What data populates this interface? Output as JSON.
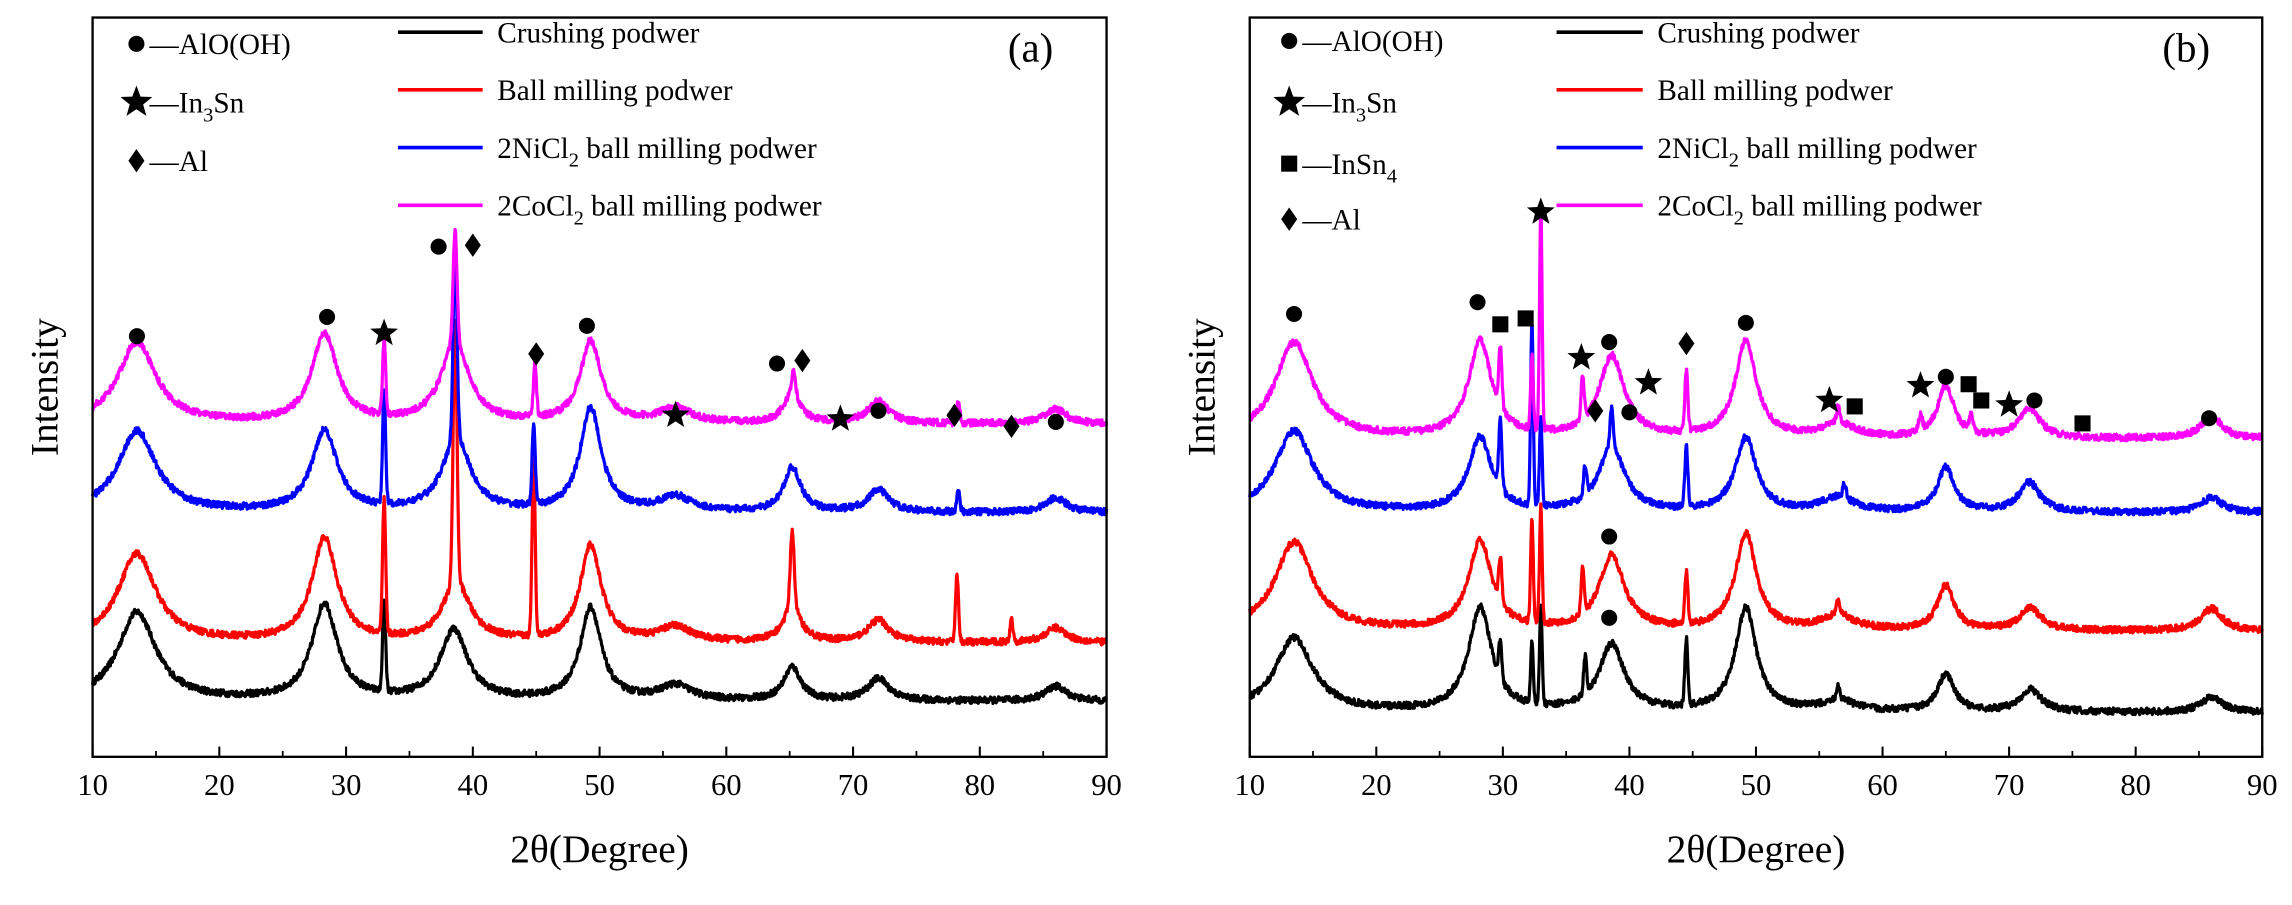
{
  "chart_data": [
    {
      "type": "line",
      "panel_label": "(a)",
      "xlabel": "2θ(Degree)",
      "ylabel": "Intensity",
      "xlim": [
        10,
        90
      ],
      "ylim": [
        0,
        100
      ],
      "xticks": [
        "10",
        "20",
        "30",
        "40",
        "50",
        "60",
        "70",
        "80",
        "90"
      ],
      "phase_legend": [
        {
          "symbol": "circle",
          "pre": "—AlO(OH)",
          "sub": "",
          "post": ""
        },
        {
          "symbol": "star",
          "pre": "—In",
          "sub": "3",
          "post": "Sn"
        },
        {
          "symbol": "diamond",
          "pre": "—Al",
          "sub": "",
          "post": ""
        }
      ],
      "series": [
        {
          "name": "Crushing podwer",
          "label_pre": "Crushing podwer",
          "label_sub": "",
          "label_post": "",
          "color": "#000000",
          "baseline": 7.5,
          "broad_peaks": [
            [
              13.5,
              12,
              1.8
            ],
            [
              28.3,
              13,
              1.2
            ],
            [
              38.5,
              9.5,
              1.3
            ],
            [
              49.3,
              12.5,
              1
            ],
            [
              56,
              2,
              1.5
            ],
            [
              65.2,
              4.5,
              0.8
            ],
            [
              72,
              3,
              1
            ],
            [
              86,
              2,
              1
            ]
          ],
          "sharp_peaks": [
            [
              33,
              12,
              0.12
            ]
          ]
        },
        {
          "name": "Ball milling podwer",
          "label_pre": "Ball milling podwer",
          "label_sub": "",
          "label_post": "",
          "color": "#ff0000",
          "baseline": 15.4,
          "broad_peaks": [
            [
              13.5,
              12,
              1.8
            ],
            [
              28.3,
              14,
              1.2
            ],
            [
              38.7,
              8,
              1.3
            ],
            [
              49.3,
              13,
              1
            ],
            [
              56,
              2,
              1.5
            ],
            [
              65.2,
              5,
              0.8
            ],
            [
              72,
              3,
              1
            ],
            [
              86,
              2,
              1
            ]
          ],
          "sharp_peaks": [
            [
              33,
              18,
              0.12
            ],
            [
              38.6,
              35,
              0.15
            ],
            [
              44.8,
              24,
              0.12
            ],
            [
              65.2,
              10,
              0.15
            ],
            [
              78.2,
              9,
              0.12
            ],
            [
              82.5,
              3,
              0.12
            ]
          ]
        },
        {
          "name": "2NiCl2 ball milling podwer",
          "label_pre": "2NiCl",
          "label_sub": "2",
          "label_post": " ball milling podwer",
          "color": "#0000ff",
          "baseline": 33,
          "broad_peaks": [
            [
              13.5,
              11,
              1.8
            ],
            [
              28.3,
              11,
              1.2
            ],
            [
              38.7,
              10,
              1.3
            ],
            [
              49.3,
              14,
              1
            ],
            [
              56,
              2,
              1.5
            ],
            [
              65.2,
              6,
              0.8
            ],
            [
              72,
              3,
              1
            ],
            [
              86,
              2,
              1
            ]
          ],
          "sharp_peaks": [
            [
              33,
              15,
              0.12
            ],
            [
              38.6,
              26,
              0.15
            ],
            [
              44.8,
              11,
              0.12
            ],
            [
              78.3,
              3,
              0.12
            ]
          ]
        },
        {
          "name": "2CoCl2 ball milling podwer",
          "label_pre": "2CoCl",
          "label_sub": "2",
          "label_post": " ball milling podwer",
          "color": "#ff00ff",
          "baseline": 45,
          "broad_peaks": [
            [
              13.5,
              11,
              1.8
            ],
            [
              28.3,
              12,
              1.2
            ],
            [
              38.6,
              11,
              1.3
            ],
            [
              49.3,
              11,
              1
            ],
            [
              56,
              2,
              1.5
            ],
            [
              65.2,
              4,
              0.8
            ],
            [
              72,
              3,
              1
            ],
            [
              86,
              2,
              1
            ]
          ],
          "sharp_peaks": [
            [
              33,
              10,
              0.12
            ],
            [
              38.6,
              15,
              0.15
            ],
            [
              44.9,
              7,
              0.12
            ],
            [
              65.3,
              3,
              0.15
            ],
            [
              78.3,
              3,
              0.12
            ]
          ]
        }
      ],
      "markers": [
        {
          "symbol": "circle",
          "x": 13.5,
          "y": 56.9
        },
        {
          "symbol": "circle",
          "x": 28.5,
          "y": 59.5
        },
        {
          "symbol": "star",
          "x": 33,
          "y": 57.3
        },
        {
          "symbol": "circle",
          "x": 37.3,
          "y": 69
        },
        {
          "symbol": "diamond",
          "x": 40,
          "y": 69.2
        },
        {
          "symbol": "diamond",
          "x": 45,
          "y": 54.5
        },
        {
          "symbol": "circle",
          "x": 49,
          "y": 58.3
        },
        {
          "symbol": "star",
          "x": 56,
          "y": 46.2
        },
        {
          "symbol": "circle",
          "x": 64,
          "y": 53.2
        },
        {
          "symbol": "diamond",
          "x": 66,
          "y": 53.6
        },
        {
          "symbol": "star",
          "x": 69,
          "y": 45.7
        },
        {
          "symbol": "circle",
          "x": 72,
          "y": 46.8
        },
        {
          "symbol": "diamond",
          "x": 78,
          "y": 46.2
        },
        {
          "symbol": "diamond",
          "x": 82.5,
          "y": 44.7
        },
        {
          "symbol": "circle",
          "x": 86,
          "y": 45.3
        }
      ]
    },
    {
      "type": "line",
      "panel_label": "(b)",
      "xlabel": "2θ(Degree)",
      "ylabel": "Intensity",
      "xlim": [
        10,
        90
      ],
      "ylim": [
        0,
        100
      ],
      "xticks": [
        "10",
        "20",
        "30",
        "40",
        "50",
        "60",
        "70",
        "80",
        "90"
      ],
      "phase_legend": [
        {
          "symbol": "circle",
          "pre": "—AlO(OH)",
          "sub": "",
          "post": ""
        },
        {
          "symbol": "star",
          "pre": "—In",
          "sub": "3",
          "post": "Sn"
        },
        {
          "symbol": "square",
          "pre": "—InSn",
          "sub": "4",
          "post": ""
        },
        {
          "symbol": "diamond",
          "pre": "—Al",
          "sub": "",
          "post": ""
        }
      ],
      "series": [
        {
          "name": "Crushing podwer",
          "label_pre": "Crushing podwer",
          "label_sub": "",
          "label_post": "",
          "color": "#000000",
          "baseline": 6,
          "broad_peaks": [
            [
              13.5,
              10,
              1.8
            ],
            [
              28.2,
              14,
              1.1
            ],
            [
              38.6,
              9,
              1.2
            ],
            [
              49.2,
              14,
              1
            ],
            [
              56.5,
              1.5,
              1.5
            ],
            [
              65,
              5,
              0.8
            ],
            [
              71.7,
              3,
              1
            ],
            [
              86,
              2,
              1
            ]
          ],
          "sharp_peaks": [
            [
              29.8,
              5,
              0.12
            ],
            [
              32.3,
              8,
              0.1
            ],
            [
              33,
              13,
              0.1
            ],
            [
              36.5,
              5,
              0.12
            ],
            [
              44.5,
              9,
              0.12
            ],
            [
              56.5,
              2,
              0.12
            ]
          ]
        },
        {
          "name": "Ball milling podwer",
          "label_pre": "Ball milling podwer",
          "label_sub": "",
          "label_post": "",
          "color": "#ff0000",
          "baseline": 17,
          "broad_peaks": [
            [
              13.5,
              12,
              1.8
            ],
            [
              28.2,
              12,
              1.1
            ],
            [
              38.6,
              10,
              1.2
            ],
            [
              49.2,
              13,
              1
            ],
            [
              56.5,
              2,
              1.5
            ],
            [
              65,
              6,
              0.8
            ],
            [
              71.7,
              3,
              1
            ],
            [
              86,
              3,
              1
            ]
          ],
          "sharp_peaks": [
            [
              29.8,
              6,
              0.12
            ],
            [
              32.3,
              14,
              0.1
            ],
            [
              33,
              16,
              0.1
            ],
            [
              36.3,
              6,
              0.12
            ],
            [
              44.5,
              7,
              0.12
            ],
            [
              56.5,
              2,
              0.12
            ]
          ]
        },
        {
          "name": "2NiCl2 ball milling podwer",
          "label_pre": "2NiCl",
          "label_sub": "2",
          "label_post": " ball milling podwer",
          "color": "#0000ff",
          "baseline": 33,
          "broad_peaks": [
            [
              13.5,
              11,
              1.8
            ],
            [
              28.2,
              10,
              1.1
            ],
            [
              38.6,
              9,
              1.2
            ],
            [
              49.2,
              10,
              1
            ],
            [
              56.5,
              2,
              1.5
            ],
            [
              65,
              6,
              0.8
            ],
            [
              71.6,
              4,
              1
            ],
            [
              86,
              2,
              1
            ]
          ],
          "sharp_peaks": [
            [
              29.8,
              9,
              0.12
            ],
            [
              32.3,
              25,
              0.1
            ],
            [
              33,
              12,
              0.1
            ],
            [
              36.5,
              4,
              0.12
            ],
            [
              38.6,
              5,
              0.12
            ],
            [
              44.5,
              8,
              0.12
            ],
            [
              57,
              2,
              0.12
            ]
          ]
        },
        {
          "name": "2CoCl2 ball milling podwer",
          "label_pre": "2CoCl",
          "label_sub": "2",
          "label_post": " ball milling podwer",
          "color": "#ff00ff",
          "baseline": 43,
          "broad_peaks": [
            [
              13.5,
              13,
              1.8
            ],
            [
              28.2,
              13,
              1.1
            ],
            [
              38.6,
              11,
              1.2
            ],
            [
              49.2,
              13,
              1
            ],
            [
              56.5,
              2,
              1.5
            ],
            [
              65,
              7,
              0.8
            ],
            [
              71.6,
              4,
              1
            ],
            [
              86,
              3,
              1
            ]
          ],
          "sharp_peaks": [
            [
              29.8,
              8,
              0.12
            ],
            [
              32.3,
              10,
              0.1
            ],
            [
              33,
              30,
              0.1
            ],
            [
              36.3,
              6,
              0.12
            ],
            [
              44.5,
              8,
              0.12
            ],
            [
              56.5,
              2,
              0.12
            ],
            [
              63,
              2,
              0.15
            ],
            [
              67,
              2,
              0.15
            ]
          ]
        }
      ],
      "markers": [
        {
          "symbol": "circle",
          "x": 13.5,
          "y": 59.9
        },
        {
          "symbol": "circle",
          "x": 28,
          "y": 61.5
        },
        {
          "symbol": "square",
          "x": 29.8,
          "y": 58.5
        },
        {
          "symbol": "square",
          "x": 31.8,
          "y": 59.3
        },
        {
          "symbol": "star",
          "x": 33,
          "y": 73.7
        },
        {
          "symbol": "star",
          "x": 36.2,
          "y": 54
        },
        {
          "symbol": "circle",
          "x": 38.4,
          "y": 56.1
        },
        {
          "symbol": "diamond",
          "x": 37.3,
          "y": 46.8
        },
        {
          "symbol": "circle",
          "x": 40,
          "y": 46.6
        },
        {
          "symbol": "star",
          "x": 41.5,
          "y": 50.6
        },
        {
          "symbol": "diamond",
          "x": 44.5,
          "y": 55.9
        },
        {
          "symbol": "circle",
          "x": 49.2,
          "y": 58.7
        },
        {
          "symbol": "star",
          "x": 55.8,
          "y": 48.2
        },
        {
          "symbol": "square",
          "x": 57.8,
          "y": 47.4
        },
        {
          "symbol": "star",
          "x": 63,
          "y": 50.2
        },
        {
          "symbol": "circle",
          "x": 65,
          "y": 51.4
        },
        {
          "symbol": "square",
          "x": 66.8,
          "y": 50.4
        },
        {
          "symbol": "square",
          "x": 67.8,
          "y": 48.2
        },
        {
          "symbol": "star",
          "x": 70,
          "y": 47.6
        },
        {
          "symbol": "circle",
          "x": 72,
          "y": 48.2
        },
        {
          "symbol": "square",
          "x": 75.8,
          "y": 45.1
        },
        {
          "symbol": "circle",
          "x": 85.8,
          "y": 45.8
        },
        {
          "symbol": "circle",
          "x": 38.4,
          "y": 29.8
        },
        {
          "symbol": "circle",
          "x": 38.4,
          "y": 18.8
        }
      ]
    }
  ]
}
